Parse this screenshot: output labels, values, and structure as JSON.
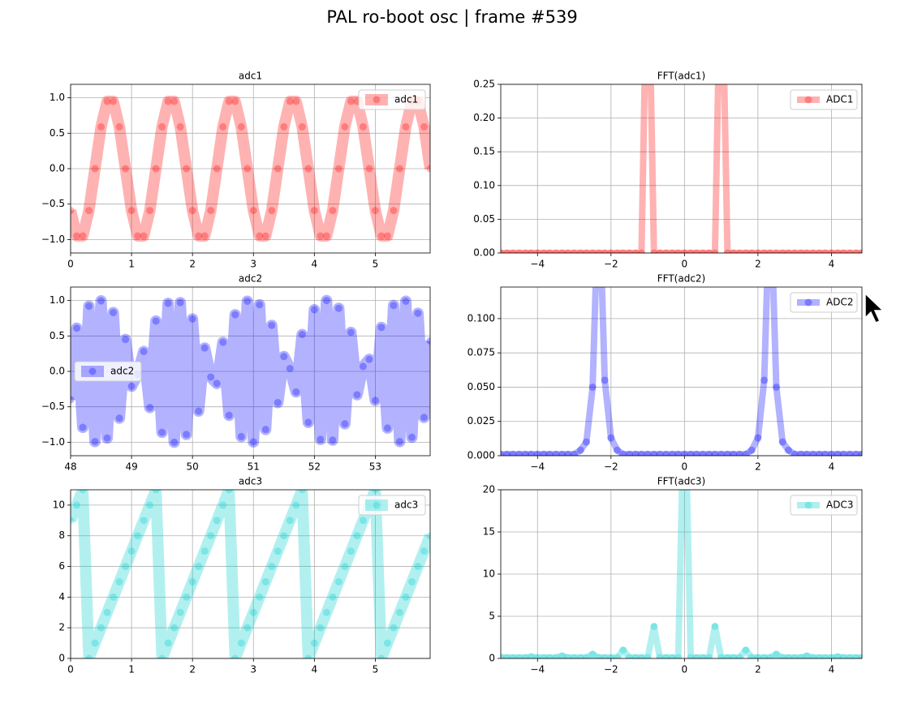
{
  "title": "PAL ro-boot osc | frame #539",
  "chart_data": [
    {
      "type": "line",
      "title": "adc1",
      "legend": "upper right",
      "grid": true,
      "xlim": [
        0,
        5.9
      ],
      "ylim": [
        -1.19,
        1.19
      ],
      "xticks": [
        0,
        1,
        2,
        3,
        4,
        5
      ],
      "yticks": [
        {
          "value": -1,
          "label": "−1.0"
        },
        {
          "value": -0.5,
          "label": "−0.5"
        },
        {
          "value": 0,
          "label": "0.0"
        },
        0.5,
        {
          "value": 1,
          "label": "1.0"
        }
      ],
      "x": [
        0,
        0.1,
        0.2,
        0.3,
        0.4,
        0.5,
        0.6,
        0.7,
        0.8,
        0.9,
        1,
        1.1,
        1.2,
        1.3,
        1.4,
        1.5,
        1.6,
        1.7,
        1.8,
        1.9,
        2,
        2.1,
        2.2,
        2.3,
        2.4,
        2.5,
        2.6,
        2.7,
        2.8,
        2.9,
        3,
        3.1,
        3.2,
        3.3,
        3.4,
        3.5,
        3.6,
        3.7,
        3.8,
        3.9,
        4,
        4.1,
        4.2,
        4.3,
        4.4,
        4.5,
        4.6,
        4.7,
        4.8,
        4.9,
        5,
        5.1,
        5.2,
        5.3,
        5.4,
        5.5,
        5.6,
        5.7,
        5.8,
        5.9
      ],
      "series": [
        {
          "name": "adc1",
          "color": "#ff0000",
          "values": [
            -0.59,
            -0.95,
            -0.95,
            -0.59,
            0,
            0.59,
            0.95,
            0.95,
            0.59,
            0,
            -0.59,
            -0.95,
            -0.95,
            -0.59,
            0,
            0.59,
            0.95,
            0.95,
            0.59,
            0,
            -0.59,
            -0.95,
            -0.95,
            -0.59,
            0,
            0.59,
            0.95,
            0.95,
            0.59,
            0,
            -0.59,
            -0.95,
            -0.95,
            -0.59,
            0,
            0.59,
            0.95,
            0.95,
            0.59,
            0,
            -0.59,
            -0.95,
            -0.95,
            -0.59,
            0,
            0.59,
            0.95,
            0.95,
            0.59,
            0,
            -0.59,
            -0.95,
            -0.95,
            -0.59,
            0,
            0.59,
            0.95,
            0.95,
            0.59,
            0
          ]
        }
      ]
    },
    {
      "type": "line",
      "title": "FFT(adc1)",
      "legend": "upper right",
      "grid": true,
      "xlim": [
        -5,
        4.83
      ],
      "ylim": [
        0,
        0.25
      ],
      "xticks": [
        {
          "value": -4,
          "label": "−4"
        },
        {
          "value": -2,
          "label": "−2"
        },
        0,
        2,
        4
      ],
      "yticks": [
        {
          "value": 0,
          "label": "0.00"
        },
        0.05,
        {
          "value": 0.1,
          "label": "0.10"
        },
        0.15,
        {
          "value": 0.2,
          "label": "0.20"
        },
        0.25
      ],
      "x": [
        -5,
        -4.83,
        -4.67,
        -4.5,
        -4.33,
        -4.17,
        -4,
        -3.83,
        -3.67,
        -3.5,
        -3.33,
        -3.17,
        -3,
        -2.83,
        -2.67,
        -2.5,
        -2.33,
        -2.17,
        -2,
        -1.83,
        -1.67,
        -1.5,
        -1.33,
        -1.17,
        -1,
        -0.83,
        -0.67,
        -0.5,
        -0.33,
        -0.17,
        0,
        0.17,
        0.33,
        0.5,
        0.67,
        0.83,
        1,
        1.17,
        1.33,
        1.5,
        1.67,
        1.83,
        2,
        2.17,
        2.33,
        2.5,
        2.67,
        2.83,
        3,
        3.17,
        3.33,
        3.5,
        3.67,
        3.83,
        4,
        4.17,
        4.33,
        4.5,
        4.67,
        4.83
      ],
      "series": [
        {
          "name": "ADC1",
          "color": "#ff0000",
          "values": [
            0,
            0,
            0,
            0,
            0,
            0,
            0,
            0,
            0,
            0,
            0,
            0,
            0,
            0,
            0,
            0,
            0,
            0,
            0,
            0,
            0,
            0,
            0,
            0,
            0.5,
            0,
            0,
            0,
            0,
            0,
            0,
            0,
            0,
            0,
            0,
            0,
            0.5,
            0,
            0,
            0,
            0,
            0,
            0,
            0,
            0,
            0,
            0,
            0,
            0,
            0,
            0,
            0,
            0,
            0,
            0,
            0,
            0,
            0,
            0,
            0
          ]
        }
      ]
    },
    {
      "type": "line",
      "title": "adc2",
      "legend": "center left",
      "grid": true,
      "xlim": [
        48,
        53.9
      ],
      "ylim": [
        -1.19,
        1.19
      ],
      "xticks": [
        48,
        49,
        50,
        51,
        52,
        53
      ],
      "yticks": [
        {
          "value": -1,
          "label": "−1.0"
        },
        {
          "value": -0.5,
          "label": "−0.5"
        },
        {
          "value": 0,
          "label": "0.0"
        },
        0.5,
        {
          "value": 1,
          "label": "1.0"
        }
      ],
      "x": [
        48,
        48.1,
        48.2,
        48.3,
        48.4,
        48.5,
        48.6,
        48.7,
        48.8,
        48.9,
        49,
        49.1,
        49.2,
        49.3,
        49.4,
        49.5,
        49.6,
        49.7,
        49.8,
        49.9,
        50,
        50.1,
        50.2,
        50.3,
        50.4,
        50.5,
        50.6,
        50.7,
        50.8,
        50.9,
        51,
        51.1,
        51.2,
        51.3,
        51.4,
        51.5,
        51.6,
        51.7,
        51.8,
        51.9,
        52,
        52.1,
        52.2,
        52.3,
        52.4,
        52.5,
        52.6,
        52.7,
        52.8,
        52.9,
        53,
        53.1,
        53.2,
        53.3,
        53.4,
        53.5,
        53.6,
        53.7,
        53.8,
        53.9
      ],
      "series": [
        {
          "name": "adc2",
          "color": "#0000ff",
          "values": [
            -0.4,
            0.61,
            -0.79,
            0.92,
            -0.99,
            0.995,
            -0.94,
            0.83,
            -0.66,
            0.45,
            -0.21,
            -0.04,
            0.28,
            -0.51,
            0.71,
            -0.86,
            0.96,
            -1,
            0.97,
            -0.89,
            0.74,
            -0.56,
            0.33,
            -0.08,
            -0.17,
            0.41,
            -0.62,
            0.8,
            -0.92,
            0.99,
            -0.995,
            0.94,
            -0.82,
            0.65,
            -0.44,
            0.21,
            0.04,
            -0.29,
            0.52,
            -0.72,
            0.87,
            -0.96,
            1,
            -0.97,
            0.89,
            -0.74,
            0.55,
            -0.33,
            0.07,
            0.17,
            -0.41,
            0.62,
            -0.8,
            0.93,
            -0.99,
            0.99,
            -0.93,
            0.82,
            -0.65,
            0.43
          ]
        }
      ]
    },
    {
      "type": "line",
      "title": "FFT(adc2)",
      "legend": "upper right",
      "grid": true,
      "xlim": [
        -5,
        4.83
      ],
      "ylim": [
        0,
        0.123
      ],
      "xticks": [
        {
          "value": -4,
          "label": "−4"
        },
        {
          "value": -2,
          "label": "−2"
        },
        0,
        2,
        4
      ],
      "yticks": [
        {
          "value": 0,
          "label": "0.000"
        },
        0.025,
        {
          "value": 0.05,
          "label": "0.050"
        },
        0.075,
        {
          "value": 0.1,
          "label": "0.100"
        }
      ],
      "x": [
        -5,
        -4.83,
        -4.67,
        -4.5,
        -4.33,
        -4.17,
        -4,
        -3.83,
        -3.67,
        -3.5,
        -3.33,
        -3.17,
        -3,
        -2.83,
        -2.67,
        -2.5,
        -2.33,
        -2.17,
        -2,
        -1.83,
        -1.67,
        -1.5,
        -1.33,
        -1.17,
        -1,
        -0.83,
        -0.67,
        -0.5,
        -0.33,
        -0.17,
        0,
        0.17,
        0.33,
        0.5,
        0.67,
        0.83,
        1,
        1.17,
        1.33,
        1.5,
        1.67,
        1.83,
        2,
        2.17,
        2.33,
        2.5,
        2.67,
        2.83,
        3,
        3.17,
        3.33,
        3.5,
        3.67,
        3.83,
        4,
        4.17,
        4.33,
        4.5,
        4.67,
        4.83
      ],
      "series": [
        {
          "name": "ADC2",
          "color": "#0000ff",
          "values": [
            0.001,
            0.001,
            0.001,
            0.001,
            0.001,
            0.001,
            0.001,
            0.001,
            0.001,
            0.001,
            0.001,
            0.001,
            0.001,
            0.004,
            0.01,
            0.05,
            0.2,
            0.055,
            0.013,
            0.004,
            0.001,
            0.001,
            0.001,
            0.001,
            0.001,
            0.001,
            0.001,
            0.001,
            0.001,
            0.001,
            0.001,
            0.001,
            0.001,
            0.001,
            0.001,
            0.001,
            0.001,
            0.001,
            0.001,
            0.001,
            0.001,
            0.004,
            0.013,
            0.055,
            0.2,
            0.05,
            0.01,
            0.004,
            0.001,
            0.001,
            0.001,
            0.001,
            0.001,
            0.001,
            0.001,
            0.001,
            0.001,
            0.001,
            0.001,
            0.001
          ]
        }
      ]
    },
    {
      "type": "line",
      "title": "adc3",
      "legend": "upper right",
      "grid": true,
      "xlim": [
        0,
        5.9
      ],
      "ylim": [
        0,
        11
      ],
      "xticks": [
        0,
        1,
        2,
        3,
        4,
        5
      ],
      "yticks": [
        0,
        2,
        4,
        6,
        8,
        10
      ],
      "x": [
        0,
        0.1,
        0.2,
        0.3,
        0.4,
        0.5,
        0.6,
        0.7,
        0.8,
        0.9,
        1,
        1.1,
        1.2,
        1.3,
        1.4,
        1.5,
        1.6,
        1.7,
        1.8,
        1.9,
        2,
        2.1,
        2.2,
        2.3,
        2.4,
        2.5,
        2.6,
        2.7,
        2.8,
        2.9,
        3,
        3.1,
        3.2,
        3.3,
        3.4,
        3.5,
        3.6,
        3.7,
        3.8,
        3.9,
        4,
        4.1,
        4.2,
        4.3,
        4.4,
        4.5,
        4.6,
        4.7,
        4.8,
        4.9,
        5,
        5.1,
        5.2,
        5.3,
        5.4,
        5.5,
        5.6,
        5.7,
        5.8,
        5.9
      ],
      "series": [
        {
          "name": "adc3",
          "color": "#00cccc",
          "values": [
            9,
            10,
            11,
            0,
            1,
            2,
            3,
            4,
            5,
            6,
            7,
            8,
            9,
            10,
            11,
            0,
            1,
            2,
            3,
            4,
            5,
            6,
            7,
            8,
            9,
            10,
            11,
            0,
            1,
            2,
            3,
            4,
            5,
            6,
            7,
            8,
            9,
            10,
            11,
            0,
            1,
            2,
            3,
            4,
            5,
            6,
            7,
            8,
            9,
            10,
            11,
            0,
            1,
            2,
            3,
            4,
            5,
            6,
            7,
            8
          ]
        }
      ]
    },
    {
      "type": "line",
      "title": "FFT(adc3)",
      "legend": "upper right",
      "grid": true,
      "xlim": [
        -5,
        4.83
      ],
      "ylim": [
        0,
        20
      ],
      "xticks": [
        {
          "value": -4,
          "label": "−4"
        },
        {
          "value": -2,
          "label": "−2"
        },
        0,
        2,
        4
      ],
      "yticks": [
        0,
        5,
        10,
        15,
        20
      ],
      "x": [
        -5,
        -4.83,
        -4.67,
        -4.5,
        -4.33,
        -4.17,
        -4,
        -3.83,
        -3.67,
        -3.5,
        -3.33,
        -3.17,
        -3,
        -2.83,
        -2.67,
        -2.5,
        -2.33,
        -2.17,
        -2,
        -1.83,
        -1.67,
        -1.5,
        -1.33,
        -1.17,
        -1,
        -0.83,
        -0.67,
        -0.5,
        -0.33,
        -0.17,
        0,
        0.17,
        0.33,
        0.5,
        0.67,
        0.83,
        1,
        1.17,
        1.33,
        1.5,
        1.67,
        1.83,
        2,
        2.17,
        2.33,
        2.5,
        2.67,
        2.83,
        3,
        3.17,
        3.33,
        3.5,
        3.67,
        3.83,
        4,
        4.17,
        4.33,
        4.5,
        4.67,
        4.83
      ],
      "series": [
        {
          "name": "ADC3",
          "color": "#00cccc",
          "values": [
            0.15,
            0.1,
            0.1,
            0.1,
            0.1,
            0.2,
            0.1,
            0.1,
            0.1,
            0.1,
            0.3,
            0.1,
            0.1,
            0.1,
            0.1,
            0.5,
            0.1,
            0.1,
            0.1,
            0.1,
            1,
            0.1,
            0.1,
            0.1,
            0.1,
            3.8,
            0.1,
            0.1,
            0.1,
            0.1,
            33,
            0.1,
            0.1,
            0.1,
            0.1,
            3.8,
            0.1,
            0.1,
            0.1,
            0.1,
            1,
            0.1,
            0.1,
            0.1,
            0.1,
            0.5,
            0.1,
            0.1,
            0.1,
            0.1,
            0.3,
            0.1,
            0.1,
            0.1,
            0.1,
            0.2,
            0.1,
            0.1,
            0.1,
            0.1
          ]
        }
      ]
    }
  ]
}
